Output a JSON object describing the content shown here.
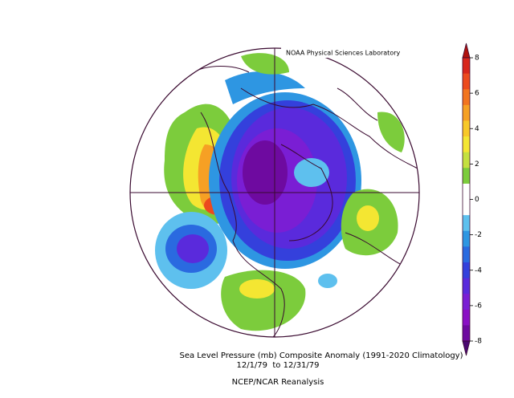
{
  "map": {
    "credit": "NOAA Physical Sciences Laboratory",
    "title": "Sea Level Pressure (mb) Composite Anomaly (1991-2020 Climatology)",
    "dates": "12/1/79  to 12/31/79",
    "source": "NCEP/NCAR Reanalysis",
    "colorbar": {
      "ticks": [
        8,
        6,
        4,
        2,
        0,
        -2,
        -4,
        -6,
        -8
      ],
      "colors": [
        "#b0120e",
        "#d8261c",
        "#ec4a1e",
        "#f27420",
        "#f6a024",
        "#f8c828",
        "#f4e632",
        "#c4e040",
        "#7ccc3c",
        "#ffffff",
        "#ffffff",
        "#5ec0ee",
        "#2e96e2",
        "#2a6ae0",
        "#3440dc",
        "#5a2adc",
        "#7a1ed4",
        "#8a10c4",
        "#6e0aa0",
        "#4a0870"
      ]
    }
  }
}
